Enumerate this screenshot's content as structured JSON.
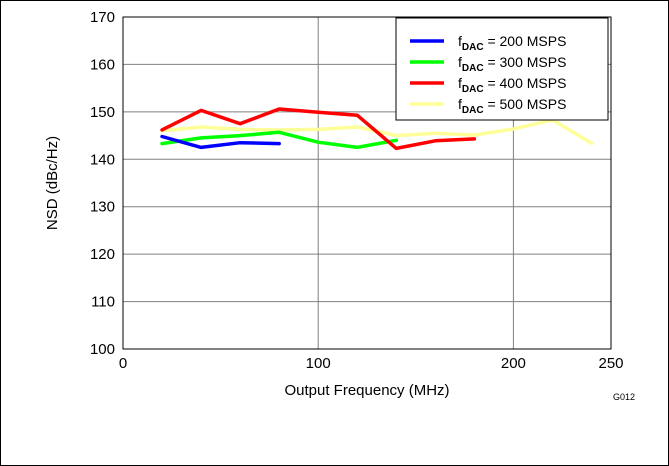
{
  "chart_data": {
    "type": "line",
    "xlabel": "Output Frequency (MHz)",
    "ylabel": "NSD (dBc/Hz)",
    "xlim": [
      0,
      250
    ],
    "ylim": [
      100,
      170
    ],
    "xticks": [
      0,
      100,
      200,
      250
    ],
    "yticks": [
      100,
      110,
      120,
      130,
      140,
      150,
      160,
      170
    ],
    "grid": true,
    "legend": "top-right",
    "figure_id": "G012",
    "series": [
      {
        "name": "f",
        "sub": "DAC",
        "suffix": " = 200 MSPS",
        "color": "#0000ff",
        "x": [
          20,
          40,
          60,
          80
        ],
        "y": [
          144.8,
          142.5,
          143.5,
          143.3
        ]
      },
      {
        "name": "f",
        "sub": "DAC",
        "suffix": " = 300 MSPS",
        "color": "#00ff00",
        "x": [
          20,
          40,
          60,
          80,
          100,
          120,
          140
        ],
        "y": [
          143.3,
          144.5,
          145.0,
          145.7,
          143.6,
          142.5,
          144.0
        ]
      },
      {
        "name": "f",
        "sub": "DAC",
        "suffix": " = 400 MSPS",
        "color": "#ff0000",
        "x": [
          20,
          40,
          60,
          80,
          100,
          120,
          140,
          160,
          180
        ],
        "y": [
          146.2,
          150.3,
          147.5,
          150.6,
          149.9,
          149.3,
          142.3,
          143.9,
          144.3
        ]
      },
      {
        "name": "f",
        "sub": "DAC",
        "suffix": " = 500 MSPS",
        "color": "#ffff99",
        "x": [
          20,
          40,
          60,
          80,
          100,
          120,
          140,
          160,
          180,
          200,
          220,
          240
        ],
        "y": [
          146.0,
          146.8,
          146.3,
          146.2,
          146.3,
          146.8,
          145.0,
          145.5,
          145.1,
          146.4,
          148.3,
          143.4
        ]
      }
    ]
  }
}
